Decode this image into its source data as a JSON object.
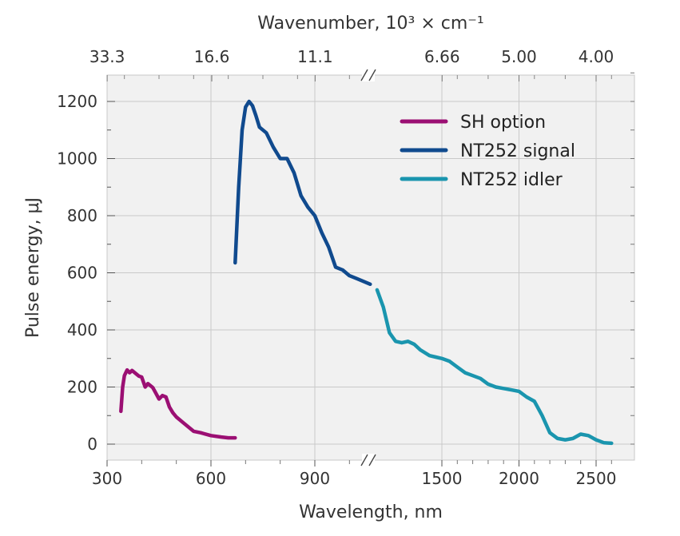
{
  "chart_data": {
    "type": "line",
    "xlabel": "Wavelength, nm",
    "ylabel": "Pulse energy, µJ",
    "top_xlabel": "Wavenumber, 10³ × cm⁻¹",
    "ylim": [
      -60,
      1300
    ],
    "x_axis_break": true,
    "grid": true,
    "legend_position": "top-right",
    "x_ticks": [
      "300",
      "600",
      "900",
      "1500",
      "2000",
      "2500"
    ],
    "top_ticks": [
      "33.3",
      "16.6",
      "11.1",
      "6.66",
      "5.00",
      "4.00"
    ],
    "y_ticks": [
      "0",
      "200",
      "400",
      "600",
      "800",
      "1000",
      "1200"
    ],
    "series": [
      {
        "name": "SH option",
        "color": "#9B0F73",
        "x": [
          340,
          345,
          350,
          358,
          365,
          372,
          378,
          385,
          392,
          400,
          410,
          418,
          425,
          432,
          440,
          450,
          460,
          470,
          480,
          490,
          500,
          520,
          550,
          570,
          600,
          630,
          650,
          670
        ],
        "y": [
          115,
          200,
          240,
          260,
          250,
          258,
          252,
          245,
          238,
          235,
          200,
          212,
          205,
          198,
          180,
          158,
          170,
          165,
          130,
          110,
          95,
          75,
          45,
          40,
          30,
          25,
          22,
          22
        ]
      },
      {
        "name": "NT252 signal",
        "color": "#104A8E",
        "x": [
          670,
          680,
          690,
          700,
          710,
          720,
          730,
          740,
          760,
          780,
          800,
          820,
          840,
          860,
          880,
          900,
          920,
          940,
          960,
          980,
          1000,
          1020,
          1040,
          1060
        ],
        "y": [
          635,
          900,
          1100,
          1180,
          1200,
          1185,
          1150,
          1110,
          1090,
          1040,
          1000,
          1000,
          950,
          870,
          830,
          800,
          740,
          690,
          620,
          610,
          590,
          580,
          570,
          560
        ]
      },
      {
        "name": "NT252 idler",
        "color": "#1A95AE",
        "x": [
          1080,
          1120,
          1160,
          1200,
          1240,
          1280,
          1320,
          1360,
          1420,
          1460,
          1500,
          1550,
          1600,
          1650,
          1700,
          1750,
          1800,
          1850,
          1900,
          1950,
          2000,
          2050,
          2100,
          2150,
          2200,
          2250,
          2300,
          2350,
          2400,
          2450,
          2500,
          2550,
          2600
        ],
        "y": [
          540,
          480,
          390,
          360,
          355,
          360,
          350,
          330,
          310,
          305,
          300,
          290,
          270,
          250,
          240,
          230,
          210,
          200,
          195,
          190,
          185,
          165,
          150,
          100,
          40,
          20,
          15,
          20,
          35,
          30,
          15,
          5,
          3
        ]
      }
    ]
  }
}
